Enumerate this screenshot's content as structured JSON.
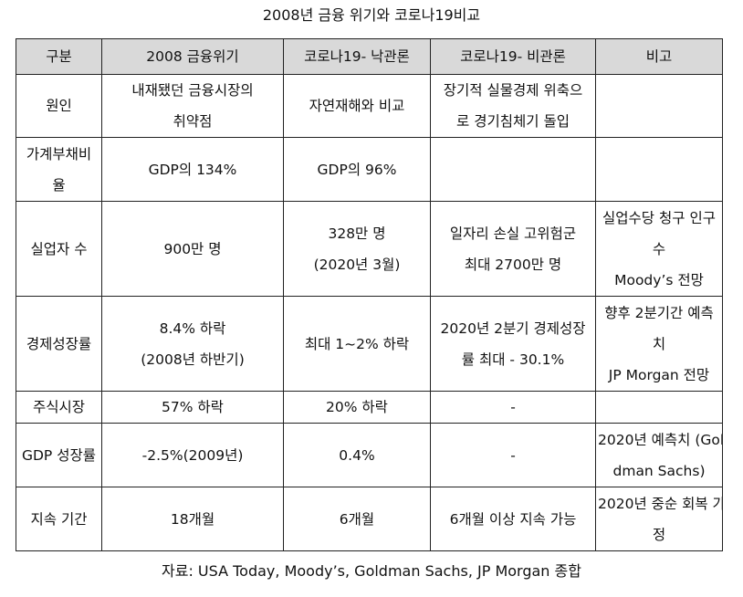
{
  "title": "2008년 금융 위기와 코로나19비교",
  "headers": [
    "구분",
    "2008 금융위기",
    "코로나19- 낙관론",
    "코로나19-  비관론",
    "비고"
  ],
  "rows": [
    {
      "label": [
        "원인"
      ],
      "c1": [
        "내재됐던 금융시장의",
        "취약점"
      ],
      "c2": [
        "자연재해와 비교"
      ],
      "c3": [
        "장기적 실물경제 위축으",
        "로 경기침체기 돌입"
      ],
      "c4": []
    },
    {
      "label": [
        "가계부채비",
        "율"
      ],
      "c1": [
        "GDP의 134%"
      ],
      "c2": [
        "GDP의 96%"
      ],
      "c3": [],
      "c4": []
    },
    {
      "label": [
        "실업자 수"
      ],
      "c1": [
        "900만 명"
      ],
      "c2": [
        "328만 명",
        "(2020년 3월)"
      ],
      "c3": [
        "일자리 손실 고위험군",
        "최대 2700만 명"
      ],
      "c4": [
        "실업수당 청구 인구",
        "수",
        "Moody’s 전망"
      ]
    },
    {
      "label": [
        "경제성장률"
      ],
      "c1": [
        "8.4% 하락",
        "(2008년 하반기)"
      ],
      "c2": [
        "최대 1~2% 하락"
      ],
      "c3": [
        "2020년 2분기 경제성장",
        "률 최대 - 30.1%"
      ],
      "c4": [
        "향후 2분기간 예측",
        "치",
        "JP Morgan 전망"
      ]
    },
    {
      "label": [
        "주식시장"
      ],
      "c1": [
        "57% 하락"
      ],
      "c2": [
        "20% 하락"
      ],
      "c3": [
        "-"
      ],
      "c4": []
    },
    {
      "label": [
        "GDP 성장률"
      ],
      "c1": [
        "-2.5%(2009년)"
      ],
      "c2": [
        "0.4%"
      ],
      "c3": [
        "-"
      ],
      "c4": [
        "2020년 예측치 (Gol",
        "dman Sachs)"
      ]
    },
    {
      "label": [
        "지속 기간"
      ],
      "c1": [
        "18개월"
      ],
      "c2": [
        "6개월"
      ],
      "c3": [
        "6개월 이상 지속 가능"
      ],
      "c4": [
        "2020년 중순 회복 가",
        "정"
      ]
    }
  ],
  "source": "자료: USA Today, Moody’s, Goldman Sachs, JP Morgan 종합"
}
